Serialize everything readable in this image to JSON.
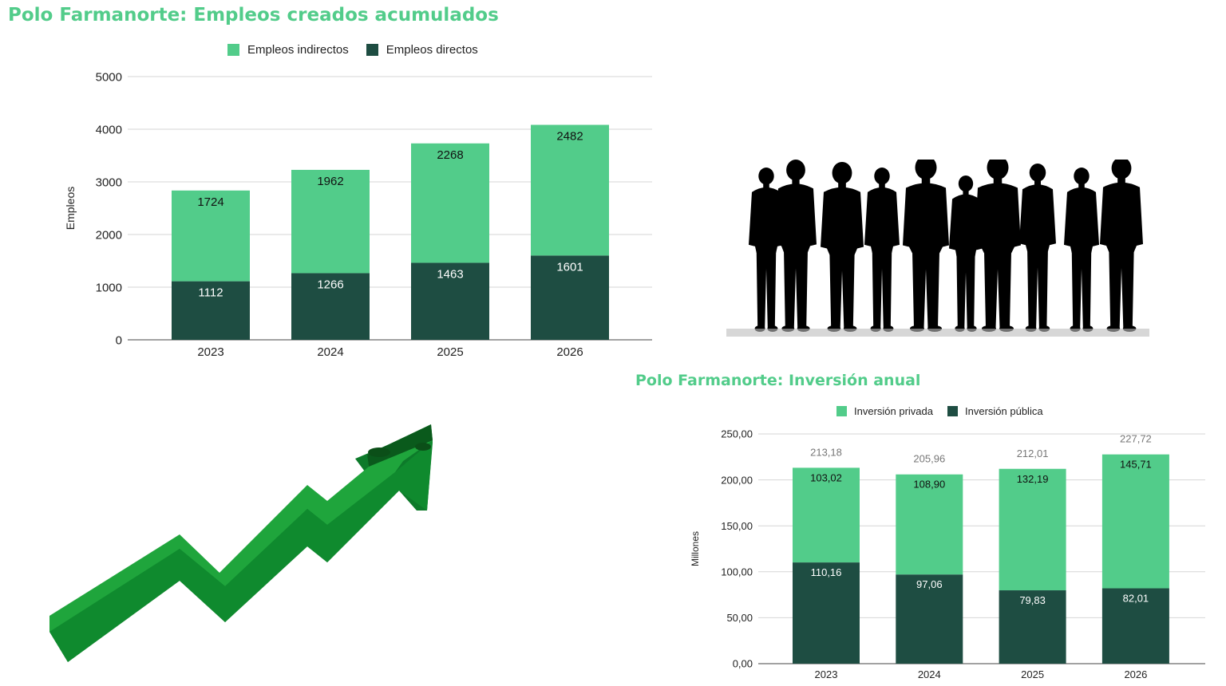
{
  "colors": {
    "indirect": "#52cc8a",
    "direct": "#1e4d42",
    "title": "#52cc8a",
    "grid": "#d6d6d6",
    "arrow_light": "#1fa03a",
    "arrow_dark": "#0c6a22",
    "silhouette": "#000000"
  },
  "illustrations": {
    "people": "group-of-people-silhouette",
    "arrow": "green-rising-zigzag-arrow"
  },
  "chart_data": [
    {
      "type": "bar",
      "stacked": true,
      "title": "Polo Farmanorte: Empleos creados acumulados",
      "categories": [
        "2023",
        "2024",
        "2025",
        "2026"
      ],
      "series": [
        {
          "name": "Empleos indirectos",
          "values": [
            1724,
            1962,
            2268,
            2482
          ]
        },
        {
          "name": "Empleos directos",
          "values": [
            1112,
            1266,
            1463,
            1601
          ]
        }
      ],
      "ylabel": "Empleos",
      "ylim": [
        0,
        5000
      ],
      "yticks": [
        "0",
        "1000",
        "2000",
        "3000",
        "4000",
        "5000"
      ],
      "grid": true,
      "legend": "top"
    },
    {
      "type": "bar",
      "stacked": true,
      "title": "Polo Farmanorte: Inversión anual",
      "categories": [
        "2023",
        "2024",
        "2025",
        "2026"
      ],
      "series": [
        {
          "name": "Inversión privada",
          "values": [
            103.02,
            108.9,
            132.19,
            145.71
          ],
          "labels": [
            "103,02",
            "108,90",
            "132,19",
            "145,71"
          ]
        },
        {
          "name": "Inversión pública",
          "values": [
            110.16,
            97.06,
            79.83,
            82.01
          ],
          "labels": [
            "110,16",
            "97,06",
            "79,83",
            "82,01"
          ]
        }
      ],
      "totals": [
        "213,18",
        "205,96",
        "212,01",
        "227,72"
      ],
      "ylabel": "Millones",
      "ylim": [
        0,
        250
      ],
      "yticks": [
        "0,00",
        "50,00",
        "100,00",
        "150,00",
        "200,00",
        "250,00"
      ],
      "grid": true,
      "legend": "top"
    }
  ]
}
